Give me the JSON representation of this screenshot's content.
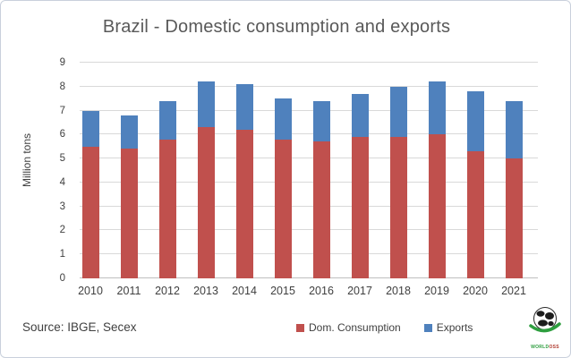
{
  "chart": {
    "title": "Brazil - Domestic consumption and exports",
    "ylabel": "Million tons",
    "colors": {
      "dom_consumption": "#c0504d",
      "exports": "#4f81bd",
      "gridline": "#d9d9d9",
      "axis_line": "#bfbfbf",
      "title_text": "#595959",
      "axis_text": "#404040"
    }
  },
  "chart_data": {
    "type": "bar",
    "stacked": true,
    "title": "Brazil - Domestic consumption and exports",
    "xlabel": "",
    "ylabel": "Million tons",
    "ylim": [
      0,
      9
    ],
    "ytick_step": 1,
    "grid": true,
    "legend_position": "bottom",
    "categories": [
      "2010",
      "2011",
      "2012",
      "2013",
      "2014",
      "2015",
      "2016",
      "2017",
      "2018",
      "2019",
      "2020",
      "2021"
    ],
    "series": [
      {
        "name": "Dom. Consumption",
        "color": "#c0504d",
        "values": [
          5.5,
          5.4,
          5.8,
          6.3,
          6.2,
          5.8,
          5.7,
          5.9,
          5.9,
          6.0,
          5.3,
          5.0
        ]
      },
      {
        "name": "Exports",
        "color": "#4f81bd",
        "values": [
          1.5,
          1.4,
          1.6,
          1.9,
          1.9,
          1.7,
          1.7,
          1.8,
          2.1,
          2.2,
          2.5,
          2.4
        ]
      }
    ],
    "totals": [
      7.0,
      6.8,
      7.4,
      8.2,
      8.1,
      7.5,
      7.4,
      7.7,
      8.0,
      8.2,
      7.8,
      7.4
    ]
  },
  "footer": {
    "source": "Source: IBGE, Secex",
    "logo_text_green": "WORLD",
    "logo_text_red": "OSS"
  }
}
